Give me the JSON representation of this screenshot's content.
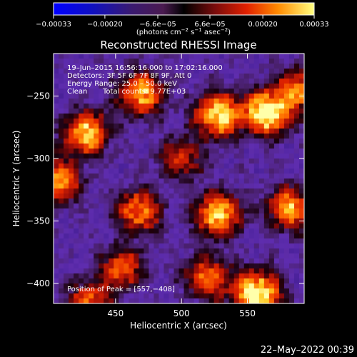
{
  "chart_data": {
    "type": "heatmap",
    "title": "Reconstructed RHESSI Image",
    "xlabel": "Heliocentric X (arcsec)",
    "ylabel": "Heliocentric Y (arcsec)",
    "xlim": [
      403,
      593
    ],
    "ylim": [
      -416,
      -216
    ],
    "x_ticks": [
      450,
      500,
      550
    ],
    "y_ticks": [
      -250,
      -300,
      -350,
      -400
    ],
    "x_tick_labels": [
      "450",
      "500",
      "550"
    ],
    "y_tick_labels": [
      "−250",
      "−300",
      "−350",
      "−400"
    ],
    "colorbar": {
      "min": -0.00033,
      "max": 0.00033,
      "ticks": [
        -0.00033,
        -0.0002,
        -6.6e-05,
        6.6e-05,
        0.0002,
        0.00033
      ],
      "tick_labels": [
        "−0.00033",
        "−0.00020",
        "−6.6e−05",
        "6.6e−05",
        "0.00020",
        "0.00033"
      ],
      "unit_prefix": "(photons cm",
      "unit_exp1": "−2",
      "unit_mid": " s",
      "unit_exp2": "−1",
      "unit_suffix": " asec",
      "unit_exp3": "−2",
      "unit_close": ")"
    },
    "annotations": {
      "time": "19–Jun–2015 16:56:16.000 to 17:02:16.000",
      "detectors": "Detectors: 3F 5F 6F 7F 8F 9F, Att 0",
      "energy": "Energy Range: 25.0 – 50.0 keV",
      "algorithm": "Clean",
      "counts": "Total counts: 9.77E+03",
      "peak": "Position of Peak = [557,−408]"
    },
    "peak_position": [
      557,
      -408
    ],
    "hotspots": [
      {
        "x": 565,
        "y": -263,
        "intensity": 1.0
      },
      {
        "x": 557,
        "y": -408,
        "intensity": 1.0
      },
      {
        "x": 528,
        "y": -265,
        "intensity": 0.85
      },
      {
        "x": 428,
        "y": -280,
        "intensity": 0.75
      },
      {
        "x": 470,
        "y": -248,
        "intensity": 0.7
      },
      {
        "x": 528,
        "y": -345,
        "intensity": 0.75
      },
      {
        "x": 405,
        "y": -318,
        "intensity": 0.7
      },
      {
        "x": 468,
        "y": -342,
        "intensity": 0.6
      },
      {
        "x": 582,
        "y": -340,
        "intensity": 0.65
      },
      {
        "x": 455,
        "y": -388,
        "intensity": 0.5
      },
      {
        "x": 520,
        "y": -395,
        "intensity": 0.55
      },
      {
        "x": 430,
        "y": -415,
        "intensity": 0.5
      },
      {
        "x": 500,
        "y": -300,
        "intensity": 0.4
      },
      {
        "x": 590,
        "y": -245,
        "intensity": 0.6
      }
    ],
    "grid": false
  },
  "footer": {
    "date": "22–May–2022 00:39"
  }
}
